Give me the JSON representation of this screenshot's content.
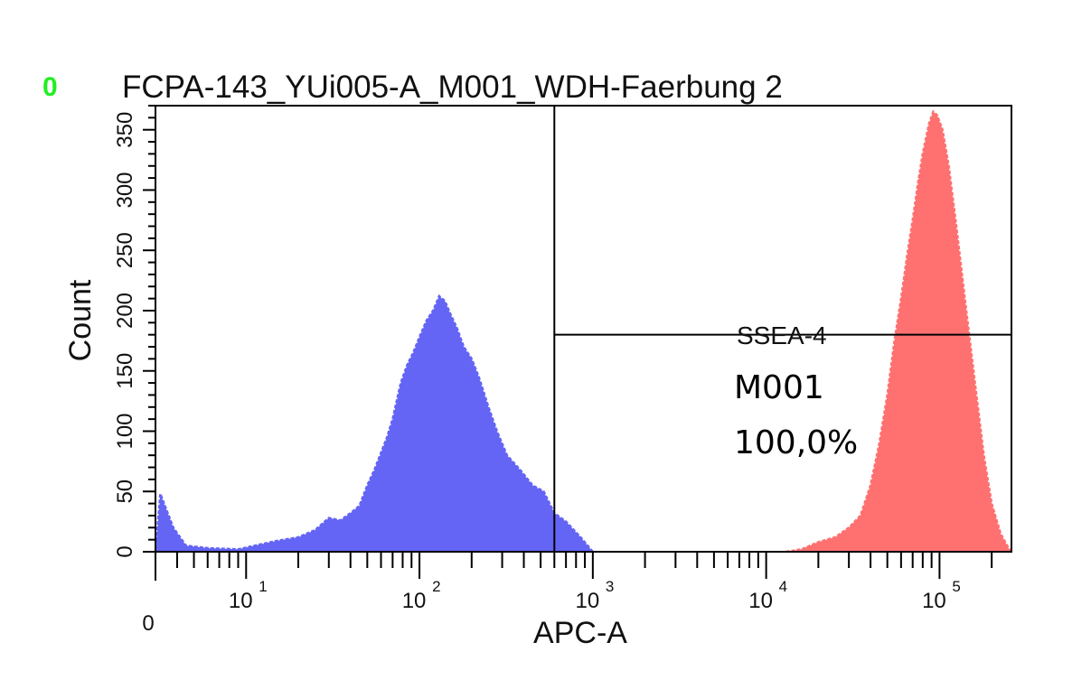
{
  "plot_index": "0",
  "chart_data": {
    "type": "area",
    "title": "FCPA-143_YUi005-A_M001_WDH-Faerbung 2",
    "xlabel": "APC-A",
    "ylabel": "Count",
    "x_scale": "log",
    "xlim": [
      3,
      260000
    ],
    "ylim": [
      0,
      370
    ],
    "y_ticks": [
      "0",
      "50",
      "100",
      "150",
      "200",
      "250",
      "300",
      "350"
    ],
    "x_tick_labels": [
      {
        "value": 3,
        "label": "0"
      },
      {
        "value": 10,
        "label": "10",
        "exp": "1"
      },
      {
        "value": 100,
        "label": "10",
        "exp": "2"
      },
      {
        "value": 1000,
        "label": "10",
        "exp": "3"
      },
      {
        "value": 10000,
        "label": "10",
        "exp": "4"
      },
      {
        "value": 100000,
        "label": "10",
        "exp": "5"
      }
    ],
    "series": [
      {
        "color": "#6464f5",
        "points": [
          [
            3,
            0
          ],
          [
            3.2,
            48
          ],
          [
            3.8,
            20
          ],
          [
            4.5,
            5
          ],
          [
            6,
            3
          ],
          [
            9,
            2
          ],
          [
            12,
            6
          ],
          [
            15,
            9
          ],
          [
            20,
            12
          ],
          [
            25,
            18
          ],
          [
            30,
            28
          ],
          [
            35,
            26
          ],
          [
            40,
            32
          ],
          [
            45,
            38
          ],
          [
            50,
            55
          ],
          [
            55,
            68
          ],
          [
            60,
            82
          ],
          [
            65,
            95
          ],
          [
            70,
            110
          ],
          [
            78,
            140
          ],
          [
            85,
            155
          ],
          [
            92,
            165
          ],
          [
            100,
            178
          ],
          [
            110,
            192
          ],
          [
            120,
            200
          ],
          [
            130,
            212
          ],
          [
            140,
            208
          ],
          [
            150,
            198
          ],
          [
            165,
            185
          ],
          [
            180,
            170
          ],
          [
            200,
            160
          ],
          [
            220,
            145
          ],
          [
            250,
            120
          ],
          [
            280,
            100
          ],
          [
            320,
            80
          ],
          [
            380,
            68
          ],
          [
            450,
            55
          ],
          [
            520,
            50
          ],
          [
            600,
            32
          ],
          [
            700,
            25
          ],
          [
            850,
            12
          ],
          [
            1000,
            0
          ]
        ]
      },
      {
        "color": "#ff7070",
        "points": [
          [
            13000,
            0
          ],
          [
            16000,
            2
          ],
          [
            20000,
            8
          ],
          [
            25000,
            12
          ],
          [
            30000,
            20
          ],
          [
            35000,
            30
          ],
          [
            40000,
            55
          ],
          [
            45000,
            90
          ],
          [
            50000,
            130
          ],
          [
            55000,
            175
          ],
          [
            60000,
            210
          ],
          [
            65000,
            245
          ],
          [
            70000,
            275
          ],
          [
            75000,
            305
          ],
          [
            80000,
            330
          ],
          [
            87000,
            355
          ],
          [
            92000,
            365
          ],
          [
            97000,
            362
          ],
          [
            104000,
            350
          ],
          [
            113000,
            320
          ],
          [
            125000,
            270
          ],
          [
            140000,
            210
          ],
          [
            160000,
            140
          ],
          [
            180000,
            80
          ],
          [
            200000,
            40
          ],
          [
            225000,
            15
          ],
          [
            250000,
            3
          ],
          [
            260000,
            0
          ]
        ]
      }
    ],
    "marker": {
      "name": "SSEA-4",
      "x_start": 600,
      "x_end": 260000,
      "y_level": 180,
      "gate_label": "M001",
      "gate_percent": "100,0%"
    }
  }
}
